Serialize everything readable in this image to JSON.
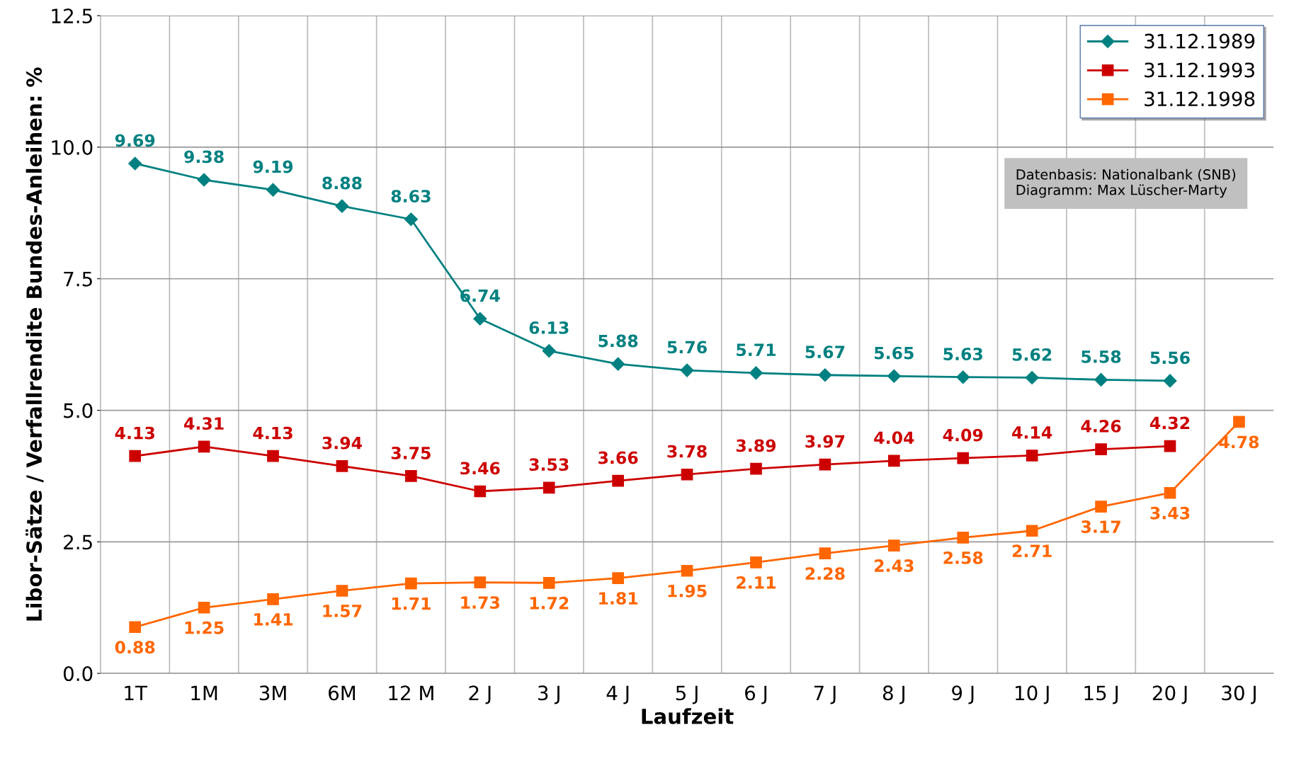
{
  "chart_data": {
    "type": "line",
    "xlabel": "Laufzeit",
    "ylabel": "Libor-Sätze / Verfallrendite Bundes-Anleihen: %",
    "categories": [
      "1T",
      "1M",
      "3M",
      "6M",
      "12 M",
      "2 J",
      "3 J",
      "4 J",
      "5 J",
      "6 J",
      "7 J",
      "8 J",
      "9 J",
      "10 J",
      "15 J",
      "20 J",
      "30 J"
    ],
    "series": [
      {
        "name": "31.12.1989",
        "color": "#008080",
        "marker": "diamond",
        "values": [
          9.69,
          9.38,
          9.19,
          8.88,
          8.63,
          6.74,
          6.13,
          5.88,
          5.76,
          5.71,
          5.67,
          5.65,
          5.63,
          5.62,
          5.58,
          5.56,
          null
        ]
      },
      {
        "name": "31.12.1993",
        "color": "#cc0000",
        "marker": "square",
        "values": [
          4.13,
          4.31,
          4.13,
          3.94,
          3.75,
          3.46,
          3.53,
          3.66,
          3.78,
          3.89,
          3.97,
          4.04,
          4.09,
          4.14,
          4.26,
          4.32,
          null
        ]
      },
      {
        "name": "31.12.1998",
        "color": "#ff6600",
        "marker": "square",
        "values": [
          0.88,
          1.25,
          1.41,
          1.57,
          1.71,
          1.73,
          1.72,
          1.81,
          1.95,
          2.11,
          2.28,
          2.43,
          2.58,
          2.71,
          3.17,
          3.43,
          4.78
        ]
      }
    ],
    "ylim": [
      0,
      12.5
    ],
    "yticks": [
      {
        "value": 0,
        "label": "0.0"
      },
      {
        "value": 2.5,
        "label": "2.5"
      },
      {
        "value": 5,
        "label": "5.0"
      },
      {
        "value": 7.5,
        "label": "7.5"
      },
      {
        "value": 10,
        "label": "10.0"
      },
      {
        "value": 12.5,
        "label": "12.5"
      }
    ],
    "grid": true,
    "legend": "top right",
    "data_labels": true,
    "line_style": "solid",
    "annotations": [
      "Datenbasis: Nationalbank (SNB)",
      "Diagramm: Max Lüscher-Marty"
    ]
  }
}
